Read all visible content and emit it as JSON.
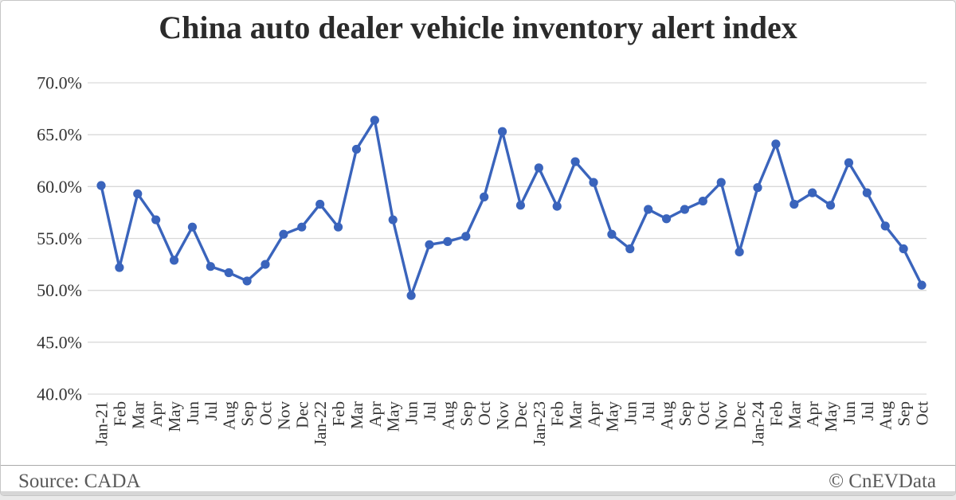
{
  "page": {
    "title": "China auto dealer vehicle inventory alert index",
    "footer": {
      "source": "Source: CADA",
      "credit": "© CnEVData"
    }
  },
  "colors": {
    "line": "#3a64bc",
    "marker": "#3a64bc",
    "grid": "#d9d9d9",
    "axis_text": "#333333",
    "title_text": "#2b2b2b",
    "footer_text": "#595959"
  },
  "chart_data": {
    "type": "line",
    "title": "China auto dealer vehicle inventory alert index",
    "xlabel": "",
    "ylabel": "",
    "grid": true,
    "legend": false,
    "ylim": [
      40,
      70
    ],
    "y_ticks": [
      70,
      65,
      60,
      55,
      50,
      45,
      40
    ],
    "y_tick_labels": [
      "70.0%",
      "65.0%",
      "60.0%",
      "55.0%",
      "50.0%",
      "45.0%",
      "40.0%"
    ],
    "categories": [
      "Jan-21",
      "Feb",
      "Mar",
      "Apr",
      "May",
      "Jun",
      "Jul",
      "Aug",
      "Sep",
      "Oct",
      "Nov",
      "Dec",
      "Jan-22",
      "Feb",
      "Mar",
      "Apr",
      "May",
      "Jun",
      "Jul",
      "Aug",
      "Sep",
      "Oct",
      "Nov",
      "Dec",
      "Jan-23",
      "Feb",
      "Mar",
      "Apr",
      "May",
      "Jun",
      "Jul",
      "Aug",
      "Sep",
      "Oct",
      "Nov",
      "Dec",
      "Jan-24",
      "Feb",
      "Mar",
      "Apr",
      "May",
      "Jun",
      "Jul",
      "Aug",
      "Sep",
      "Oct"
    ],
    "series": [
      {
        "name": "China auto dealer vehicle inventory alert index",
        "unit": "%",
        "values": [
          60.1,
          52.2,
          59.3,
          56.8,
          52.9,
          56.1,
          52.3,
          51.7,
          50.9,
          52.5,
          55.4,
          56.1,
          58.3,
          56.1,
          63.6,
          66.4,
          56.8,
          49.5,
          54.4,
          54.7,
          55.2,
          59.0,
          65.3,
          58.2,
          61.8,
          58.1,
          62.4,
          60.4,
          55.4,
          54.0,
          57.8,
          56.9,
          57.8,
          58.6,
          60.4,
          53.7,
          59.9,
          64.1,
          58.3,
          59.4,
          58.2,
          62.3,
          59.4,
          56.2,
          54.0,
          50.5
        ]
      }
    ]
  }
}
